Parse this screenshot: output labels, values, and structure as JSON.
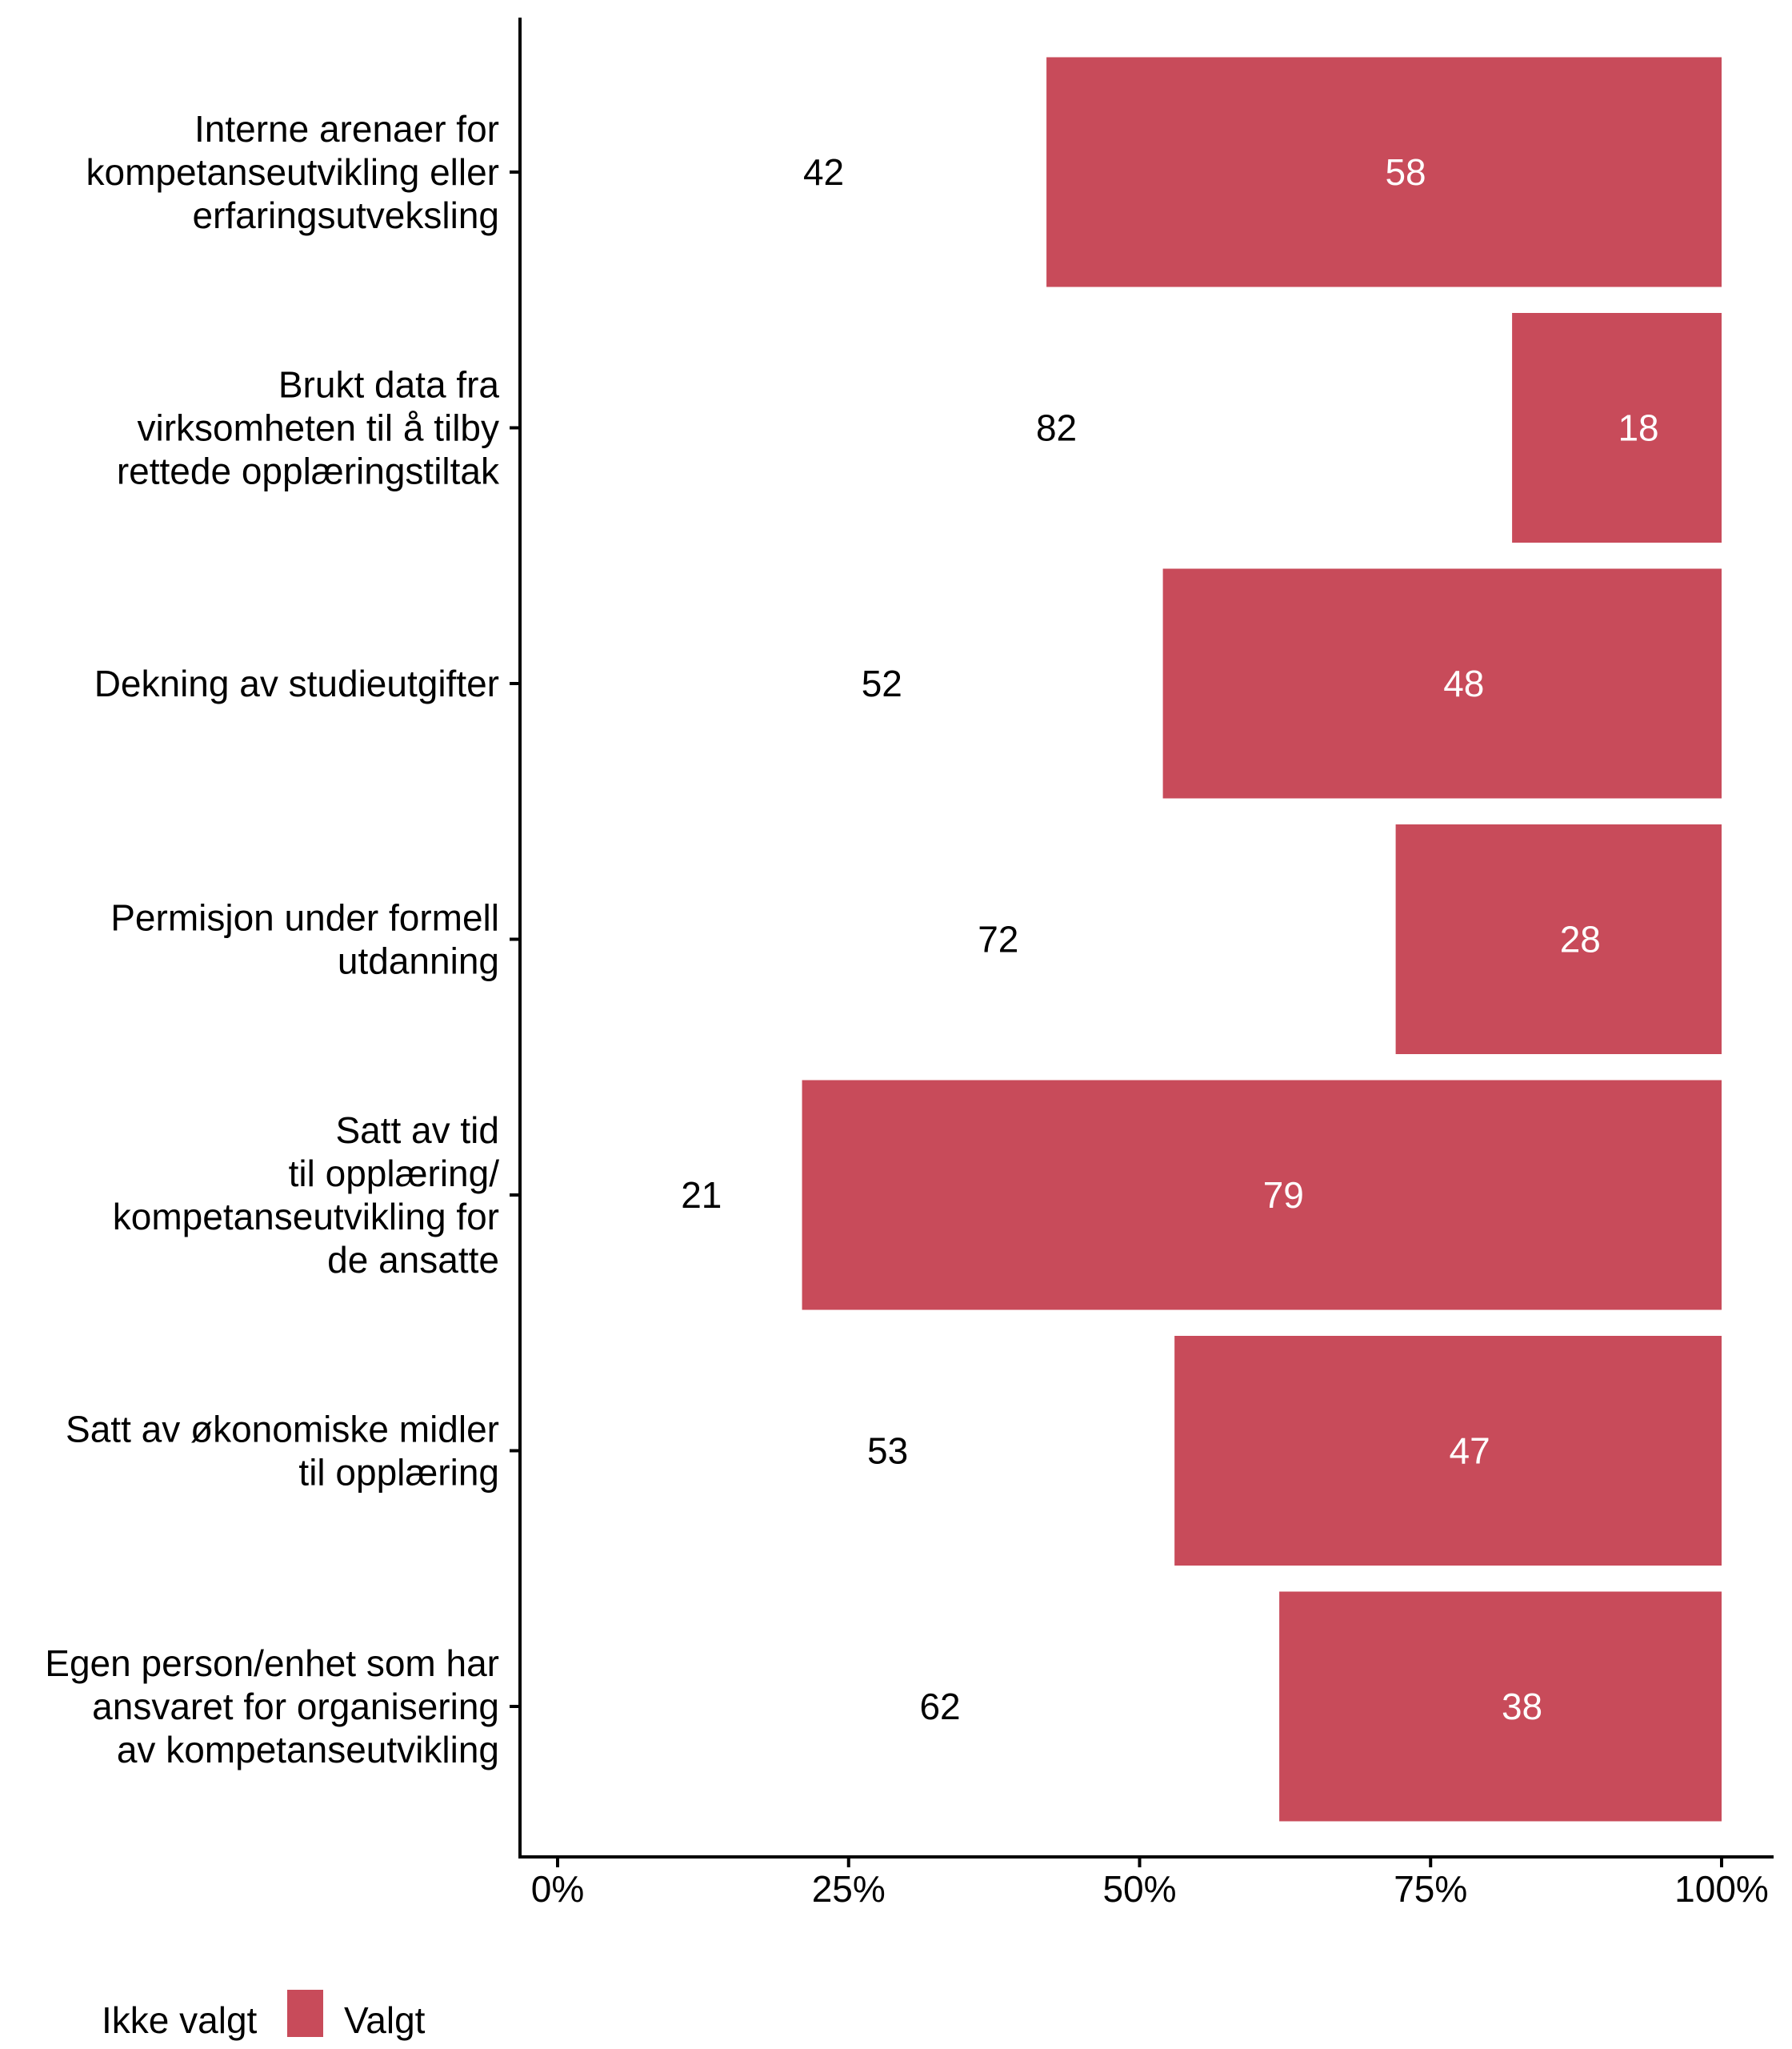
{
  "chart_data": {
    "type": "bar",
    "orientation": "horizontal",
    "stacked": true,
    "title": "",
    "xlabel": "",
    "ylabel": "",
    "xlim": [
      0,
      100
    ],
    "x_ticks": [
      0,
      25,
      50,
      75,
      100
    ],
    "x_tick_labels": [
      "0%",
      "25%",
      "50%",
      "75%",
      "100%"
    ],
    "grid": false,
    "legend_position": "bottom-left",
    "categories": [
      [
        "Interne arenaer for",
        "kompetanseutvikling eller",
        "erfaringsutveksling"
      ],
      [
        "Brukt data fra",
        "virksomheten til å tilby",
        "rettede opplæringstiltak"
      ],
      [
        "Dekning av studieutgifter"
      ],
      [
        "Permisjon under formell",
        "utdanning"
      ],
      [
        "Satt av tid",
        "til opplæring/",
        "kompetanseutvikling for",
        "de ansatte"
      ],
      [
        "Satt av økonomiske midler",
        "til opplæring"
      ],
      [
        "Egen person/enhet som har",
        "ansvaret for organisering",
        "av kompetanseutvikling"
      ]
    ],
    "series": [
      {
        "name": "Ikke valgt",
        "color": "#FFFFFF",
        "label_color": "#000000",
        "values": [
          42,
          82,
          52,
          72,
          21,
          53,
          62
        ]
      },
      {
        "name": "Valgt",
        "color": "#C84B5A",
        "label_color": "#FFFFFF",
        "values": [
          58,
          18,
          48,
          28,
          79,
          47,
          38
        ]
      }
    ]
  },
  "legend": {
    "items": [
      "Ikke valgt",
      "Valgt"
    ]
  }
}
